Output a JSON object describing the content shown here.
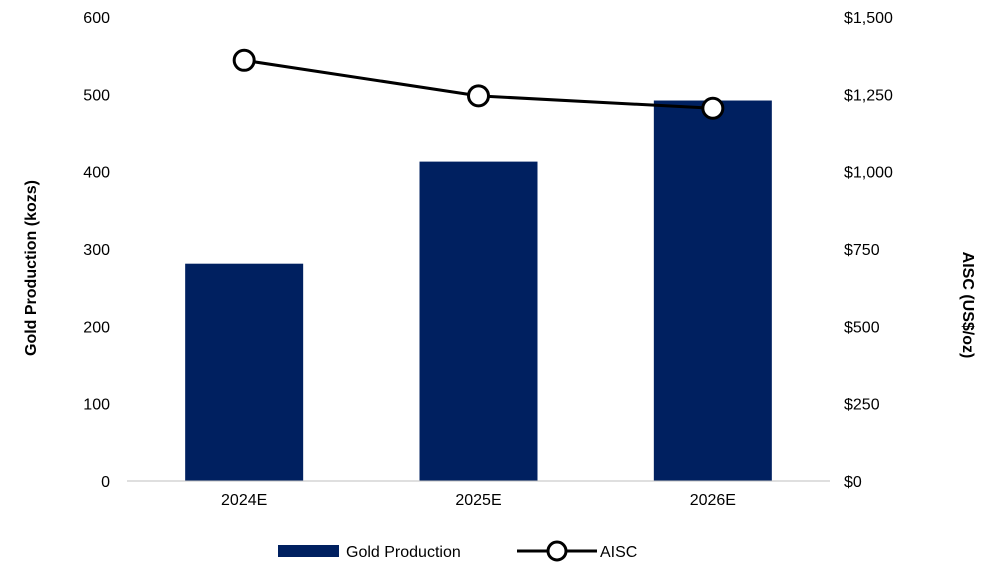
{
  "chart_data": {
    "type": "bar",
    "categories": [
      "2024E",
      "2025E",
      "2026E"
    ],
    "series": [
      {
        "name": "Gold Production",
        "type": "bar",
        "axis": "left",
        "values": [
          281,
          413,
          492
        ],
        "color": "#002060"
      },
      {
        "name": "AISC",
        "type": "line",
        "axis": "right",
        "values": [
          1360,
          1245,
          1205
        ],
        "color": "#000000",
        "marker": "open-circle"
      }
    ],
    "y_left": {
      "label": "Gold Production (kozs)",
      "ylim": [
        0,
        600
      ],
      "ticks": [
        0,
        100,
        200,
        300,
        400,
        500,
        600
      ],
      "tick_labels": [
        "0",
        "100",
        "200",
        "300",
        "400",
        "500",
        "600"
      ]
    },
    "y_right": {
      "label": "AISC (US$/oz)",
      "ylim": [
        0,
        1500
      ],
      "ticks": [
        0,
        250,
        500,
        750,
        1000,
        1250,
        1500
      ],
      "tick_labels": [
        "$0",
        "$250",
        "$500",
        "$750",
        "$1,000",
        "$1,250",
        "$1,500"
      ]
    },
    "grid": false,
    "legend_position": "bottom"
  }
}
